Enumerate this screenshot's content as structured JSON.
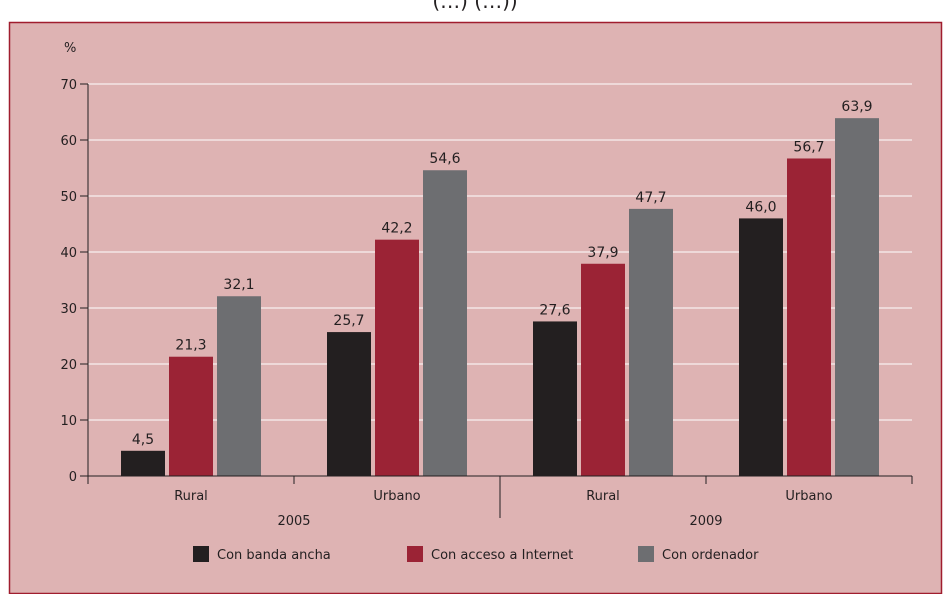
{
  "chart_data": {
    "type": "bar",
    "top_caption": "(…) (…))",
    "ylabel": "%",
    "ylim": [
      0,
      70
    ],
    "yticks": [
      0,
      10,
      20,
      30,
      40,
      50,
      60,
      70
    ],
    "groups": [
      {
        "year": "2005",
        "categories": [
          "Rural",
          "Urbano"
        ]
      },
      {
        "year": "2009",
        "categories": [
          "Rural",
          "Urbano"
        ]
      }
    ],
    "categories": [
      "Rural",
      "Urbano",
      "Rural",
      "Urbano"
    ],
    "series": [
      {
        "name": "Con banda ancha",
        "color": "#231f20",
        "values": [
          4.5,
          25.7,
          27.6,
          46.0
        ],
        "labels": [
          "4,5",
          "25,7",
          "27,6",
          "46,0"
        ]
      },
      {
        "name": "Con acceso a Internet",
        "color": "#9b2335",
        "values": [
          21.3,
          42.2,
          37.9,
          56.7
        ],
        "labels": [
          "21,3",
          "42,2",
          "37,9",
          "56,7"
        ]
      },
      {
        "name": "Con ordenador",
        "color": "#6d6e71",
        "values": [
          32.1,
          54.6,
          47.7,
          63.9
        ],
        "labels": [
          "32,1",
          "54,6",
          "47,7",
          "63,9"
        ]
      }
    ],
    "grid": true,
    "legend_position": "bottom",
    "colors": {
      "background": "#deb3b3",
      "border": "#a01d2e",
      "grid": "#ffffff",
      "axis": "#231f20"
    }
  }
}
